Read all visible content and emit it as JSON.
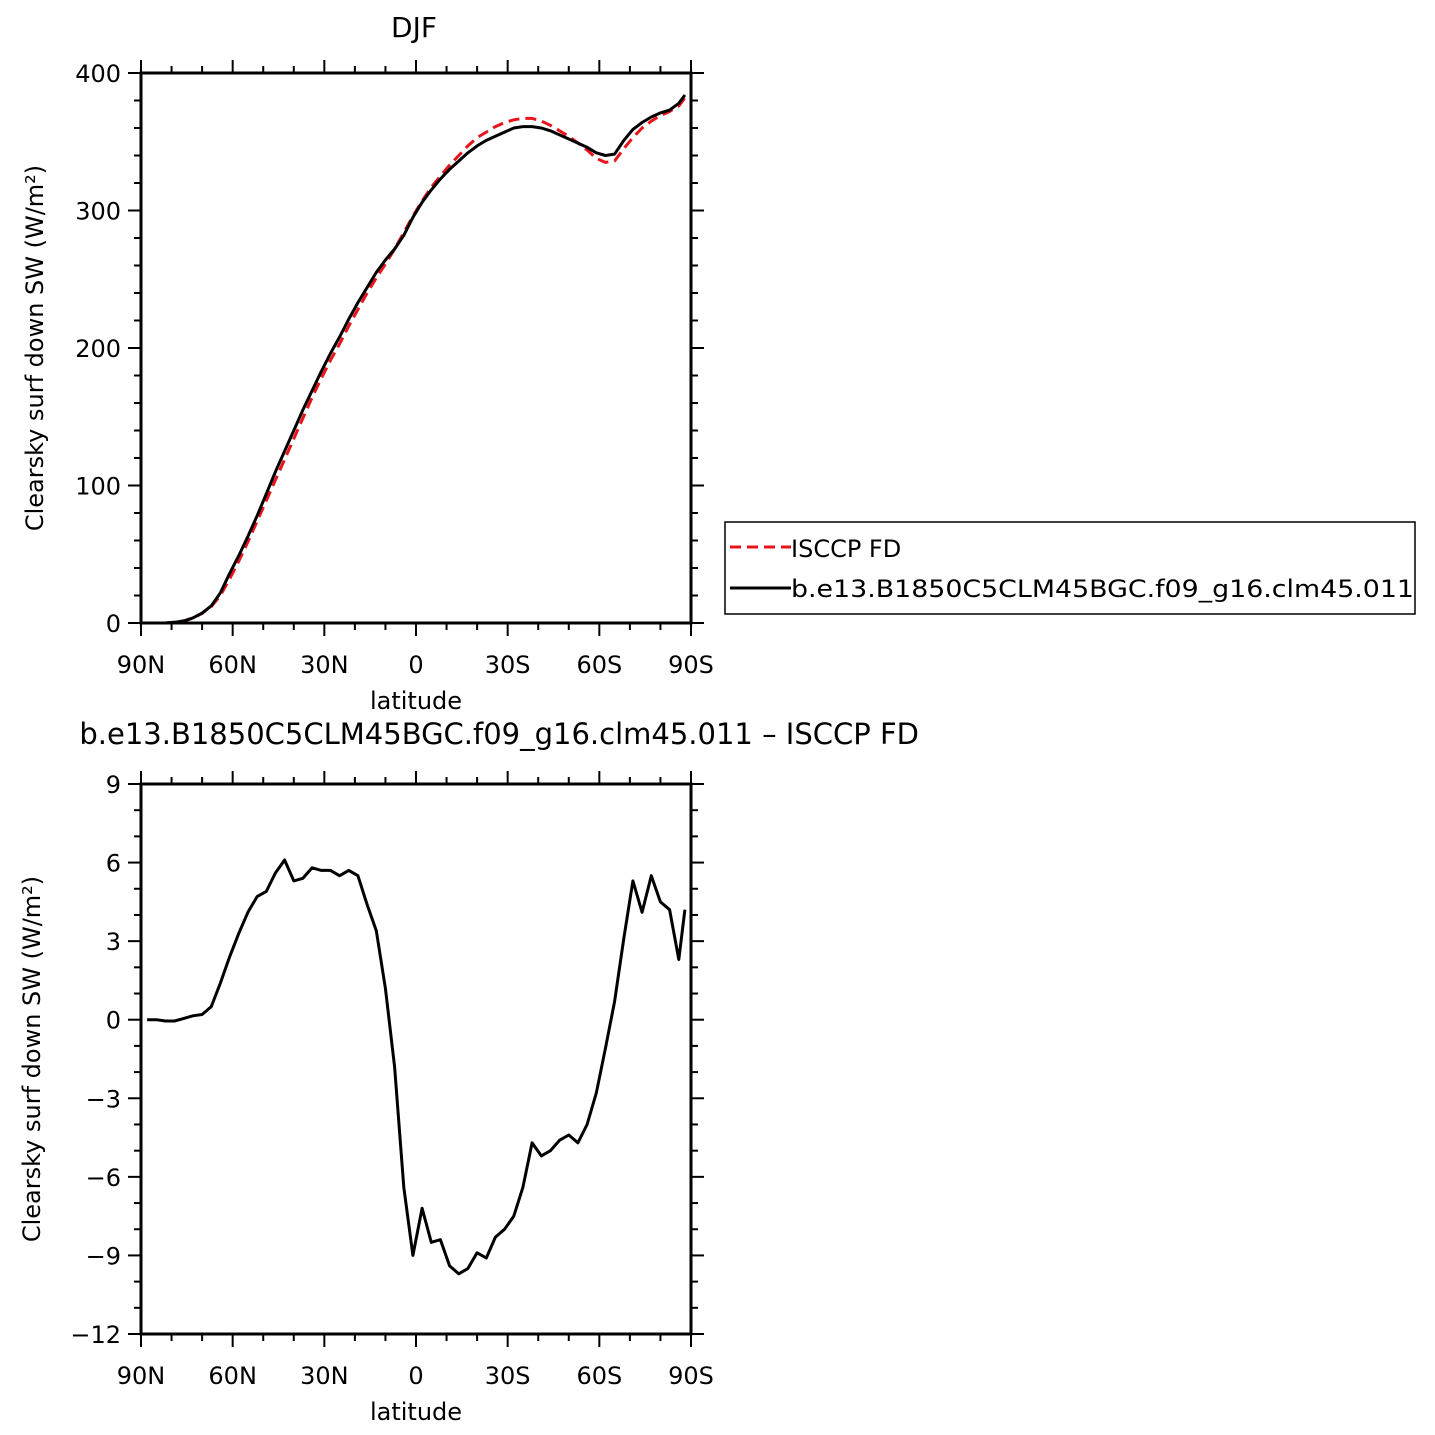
{
  "chart_data": [
    {
      "type": "line",
      "title": "DJF",
      "xlabel": "latitude",
      "ylabel": "Clearsky surf down SW (W/m²)",
      "xlim": [
        -90,
        90
      ],
      "ylim": [
        0,
        400
      ],
      "xticks": [
        -90,
        -60,
        -30,
        0,
        30,
        60,
        90
      ],
      "xticklabels": [
        "90N",
        "60N",
        "30N",
        "0",
        "30S",
        "60S",
        "90S"
      ],
      "yticks": [
        0,
        100,
        200,
        300,
        400
      ],
      "yticklabels": [
        "0",
        "100",
        "200",
        "300",
        "400"
      ],
      "legend_position": "right",
      "series": [
        {
          "name": "ISCCP FD",
          "color": "#e8141b",
          "dash": true,
          "x": [
            -88,
            -85,
            -82,
            -79,
            -76,
            -73,
            -70,
            -67,
            -64,
            -61,
            -58,
            -55,
            -52,
            -49,
            -46,
            -43,
            -40,
            -37,
            -34,
            -31,
            -28,
            -25,
            -22,
            -19,
            -16,
            -13,
            -10,
            -7,
            -4,
            -1,
            2,
            5,
            8,
            11,
            14,
            17,
            20,
            23,
            26,
            29,
            32,
            35,
            38,
            41,
            44,
            47,
            50,
            53,
            56,
            59,
            62,
            65,
            68,
            71,
            74,
            77,
            80,
            83,
            86,
            88
          ],
          "values": [
            0,
            0,
            0,
            0.5,
            1.5,
            3.5,
            7,
            12,
            20,
            32,
            45,
            59,
            74,
            89,
            104,
            119,
            134,
            149,
            164,
            178,
            191,
            203,
            216,
            228,
            240,
            251,
            261,
            272,
            284,
            296,
            307,
            317,
            325,
            333,
            340,
            347,
            353,
            357,
            361,
            364,
            366,
            367,
            367,
            365,
            362,
            358,
            354,
            349,
            344,
            338,
            335,
            336,
            345,
            353,
            360,
            365,
            369,
            372,
            376,
            382
          ]
        },
        {
          "name": "b.e13.B1850C5CLM45BGC.f09_g16.clm45.011",
          "color": "#000000",
          "dash": false,
          "x": [
            -88,
            -85,
            -82,
            -79,
            -76,
            -73,
            -70,
            -67,
            -64,
            -61,
            -58,
            -55,
            -52,
            -49,
            -46,
            -43,
            -40,
            -37,
            -34,
            -31,
            -28,
            -25,
            -22,
            -19,
            -16,
            -13,
            -10,
            -7,
            -4,
            -1,
            2,
            5,
            8,
            11,
            14,
            17,
            20,
            23,
            26,
            29,
            32,
            35,
            38,
            41,
            44,
            47,
            50,
            53,
            56,
            59,
            62,
            65,
            68,
            71,
            74,
            77,
            80,
            83,
            86,
            88
          ],
          "values": [
            0,
            0,
            0,
            0.5,
            1.5,
            3.7,
            7.2,
            12.5,
            22,
            36,
            49,
            63,
            78,
            94,
            110,
            125,
            140,
            155,
            169,
            183,
            196,
            208,
            221,
            233,
            244,
            255,
            264,
            272,
            282,
            295,
            306,
            315,
            323,
            330,
            336,
            342,
            347,
            351,
            354,
            357,
            360,
            361,
            361,
            360,
            358,
            355,
            352,
            349,
            346,
            342,
            340,
            341,
            351,
            359,
            364,
            368,
            371,
            373,
            378,
            384
          ]
        }
      ]
    },
    {
      "type": "line",
      "title": "b.e13.B1850C5CLM45BGC.f09_g16.clm45.011 – ISCCP FD",
      "xlabel": "latitude",
      "ylabel": "Clearsky surf down SW (W/m²)",
      "xlim": [
        -90,
        90
      ],
      "ylim": [
        -12,
        9
      ],
      "xticks": [
        -90,
        -60,
        -30,
        0,
        30,
        60,
        90
      ],
      "xticklabels": [
        "90N",
        "60N",
        "30N",
        "0",
        "30S",
        "60S",
        "90S"
      ],
      "yticks": [
        -12,
        -9,
        -6,
        -3,
        0,
        3,
        6,
        9
      ],
      "yticklabels": [
        "−12",
        "−9",
        "−6",
        "−3",
        "0",
        "3",
        "6",
        "9"
      ],
      "series": [
        {
          "color": "#000000",
          "x": [
            -88,
            -85,
            -82,
            -79,
            -76,
            -73,
            -70,
            -67,
            -64,
            -61,
            -58,
            -55,
            -52,
            -49,
            -46,
            -43,
            -40,
            -37,
            -34,
            -31,
            -28,
            -25,
            -22,
            -19,
            -16,
            -13,
            -10,
            -7,
            -4,
            -1,
            2,
            5,
            8,
            11,
            14,
            17,
            20,
            23,
            26,
            29,
            32,
            35,
            38,
            41,
            44,
            47,
            50,
            53,
            56,
            59,
            62,
            65,
            68,
            71,
            74,
            77,
            80,
            83,
            86,
            88
          ],
          "values": [
            0,
            0,
            -0.05,
            -0.05,
            0.05,
            0.15,
            0.2,
            0.5,
            1.4,
            2.4,
            3.3,
            4.1,
            4.7,
            4.9,
            5.6,
            6.1,
            5.3,
            5.4,
            5.8,
            5.7,
            5.7,
            5.5,
            5.7,
            5.5,
            4.4,
            3.4,
            1.2,
            -1.8,
            -6.4,
            -9.0,
            -7.2,
            -8.5,
            -8.4,
            -9.4,
            -9.7,
            -9.5,
            -8.9,
            -9.1,
            -8.3,
            -8.0,
            -7.5,
            -6.4,
            -4.7,
            -5.2,
            -5.0,
            -4.6,
            -4.4,
            -4.7,
            -4.0,
            -2.8,
            -1.1,
            0.7,
            3.1,
            5.3,
            4.1,
            5.5,
            4.5,
            4.2,
            2.3,
            4.2
          ]
        }
      ]
    }
  ]
}
